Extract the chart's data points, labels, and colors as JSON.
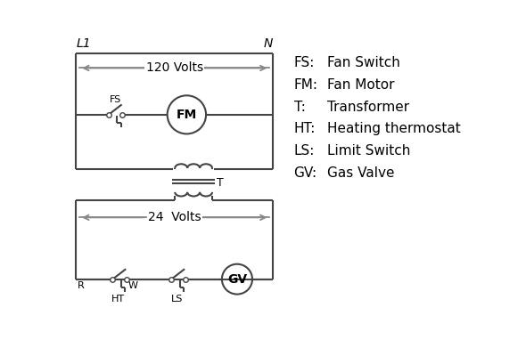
{
  "bg_color": "#ffffff",
  "line_color": "#444444",
  "arrow_color": "#888888",
  "text_color": "#000000",
  "legend": {
    "FS": "Fan Switch",
    "FM": "Fan Motor",
    "T": "Transformer",
    "HT": "Heating thermostat",
    "LS": "Limit Switch",
    "GV": "Gas Valve"
  },
  "L1_label": "L1",
  "N_label": "N",
  "volts120_label": "120 Volts",
  "volts24_label": "24  Volts",
  "fs_label": "FS",
  "fm_label": "FM",
  "t_label": "T",
  "ht_label": "HT",
  "ls_label": "LS",
  "gv_label": "GV",
  "r_label": "R",
  "w_label": "W"
}
